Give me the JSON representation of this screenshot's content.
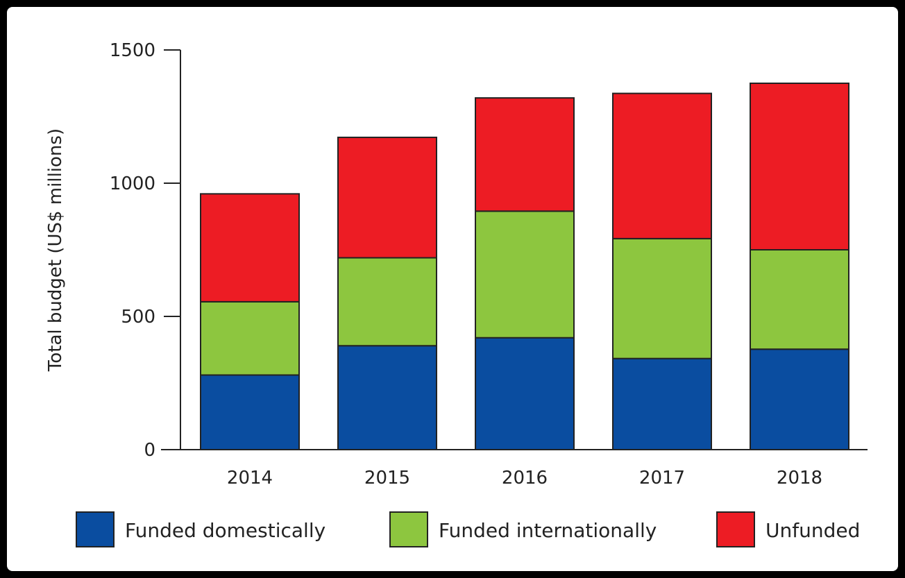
{
  "chart_data": {
    "type": "bar",
    "stacked": true,
    "categories": [
      "2014",
      "2015",
      "2016",
      "2017",
      "2018"
    ],
    "series": [
      {
        "name": "Funded domestically",
        "color": "#0a4da0",
        "values": [
          280,
          390,
          420,
          342,
          377
        ]
      },
      {
        "name": "Funded internationally",
        "color": "#8dc63f",
        "values": [
          275,
          330,
          475,
          450,
          373
        ]
      },
      {
        "name": "Unfunded",
        "color": "#ed1c24",
        "values": [
          405,
          452,
          425,
          545,
          625
        ]
      }
    ],
    "ylabel": "Total budget (US$ millions)",
    "ylim": [
      0,
      1500
    ],
    "yticks": [
      "0",
      "500",
      "1000",
      "1500"
    ],
    "yticks_values": [
      0,
      500,
      1000,
      1500
    ],
    "grid": false,
    "legend_position": "bottom"
  }
}
